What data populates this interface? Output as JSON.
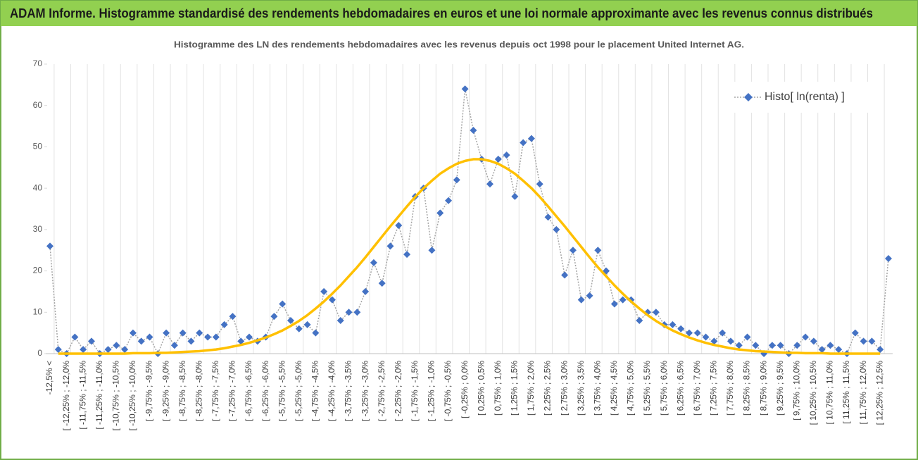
{
  "header": {
    "title": "ADAM Informe. Histogramme standardisé des rendements hebdomadaires en euros et une loi normale approximante avec les revenus connus distribués"
  },
  "chart_data": {
    "type": "line",
    "title": "Histogramme  des LN des rendements hebdomadaires avec les revenus depuis oct 1998 pour le placement United Internet AG.",
    "categories": [
      "-12,5% <",
      null,
      "[ -12,25% ; -12,0%",
      null,
      "[ -11,75% ; -11,5%",
      null,
      "[ -11,25% ; -11,0%",
      null,
      "[ -10,75% ; -10,5%",
      null,
      "[ -10,25% ; -10,0%",
      null,
      "[ -9,75% ; -9,5%",
      null,
      "[ -9,25% ; -9,0%",
      null,
      "[ -8,75% ; -8,5%",
      null,
      "[ -8,25% ; -8,0%",
      null,
      "[ -7,75% ; -7,5%",
      null,
      "[ -7,25% ; -7,0%",
      null,
      "[ -6,75% ; -6,5%",
      null,
      "[ -6,25% ; -6,0%",
      null,
      "[ -5,75% ; -5,5%",
      null,
      "[ -5,25% ; -5,0%",
      null,
      "[ -4,75% ; -4,5%",
      null,
      "[ -4,25% ; -4,0%",
      null,
      "[ -3,75% ; -3,5%",
      null,
      "[ -3,25% ; -3,0%",
      null,
      "[ -2,75% ; -2,5%",
      null,
      "[ -2,25% ; -2,0%",
      null,
      "[ -1,75% ; -1,5%",
      null,
      "[ -1,25% ; -1,0%",
      null,
      "[ -0,75% ; -0,5%",
      null,
      "[ -0,25% ; 0,0%",
      null,
      "[ 0,25% ; 0,5%",
      null,
      "[ 0,75% ; 1,0%",
      null,
      "[ 1,25% ; 1,5%",
      null,
      "[ 1,75% ; 2,0%",
      null,
      "[ 2,25% ; 2,5%",
      null,
      "[ 2,75% ; 3,0%",
      null,
      "[ 3,25% ; 3,5%",
      null,
      "[ 3,75% ; 4,0%",
      null,
      "[ 4,25% ; 4,5%",
      null,
      "[ 4,75% ; 5,0%",
      null,
      "[ 5,25% ; 5,5%",
      null,
      "[ 5,75% ; 6,0%",
      null,
      "[ 6,25% ; 6,5%",
      null,
      "[ 6,75% ; 7,0%",
      null,
      "[ 7,25% ; 7,5%",
      null,
      "[ 7,75% ; 8,0%",
      null,
      "[ 8,25% ; 8,5%",
      null,
      "[ 8,75% ; 9,0%",
      null,
      "[ 9,25% ; 9,5%",
      null,
      "[ 9,75% ; 10,0%",
      null,
      "[ 10,25% ; 10,5%",
      null,
      "[ 10,75% ; 11,0%",
      null,
      "[ 11,25% ; 11,5%",
      null,
      "[ 11,75% ; 12,0%",
      null,
      "[ 12,25% ; 12,5%",
      null
    ],
    "series": [
      {
        "name": "Histo[ ln(renta) ]",
        "color": "#4472c4",
        "line_color": "#a5a5a5",
        "marker": "diamond",
        "values": [
          26,
          1,
          0,
          4,
          1,
          3,
          0,
          1,
          2,
          1,
          5,
          3,
          4,
          0,
          5,
          2,
          5,
          3,
          5,
          4,
          4,
          7,
          9,
          3,
          4,
          3,
          4,
          9,
          12,
          8,
          6,
          7,
          5,
          15,
          13,
          8,
          10,
          10,
          15,
          22,
          17,
          26,
          31,
          24,
          38,
          40,
          25,
          34,
          37,
          42,
          64,
          54,
          47,
          41,
          47,
          48,
          38,
          51,
          52,
          41,
          33,
          30,
          19,
          25,
          13,
          14,
          25,
          20,
          12,
          13,
          13,
          8,
          10,
          10,
          7,
          7,
          6,
          5,
          5,
          4,
          3,
          5,
          3,
          2,
          4,
          2,
          0,
          2,
          2,
          0,
          2,
          4,
          3,
          1,
          2,
          1,
          0,
          5,
          3,
          3,
          1,
          23
        ]
      },
      {
        "color": "#ffc000",
        "values": [
          null,
          0,
          0,
          0,
          0,
          0,
          0,
          0,
          0,
          0,
          0.1,
          0.1,
          0.1,
          0.2,
          0.2,
          0.3,
          0.4,
          0.5,
          0.6,
          0.8,
          1,
          1.3,
          1.7,
          2.1,
          2.6,
          3.2,
          3.9,
          4.7,
          5.6,
          6.7,
          7.9,
          9.3,
          10.9,
          12.6,
          14.5,
          16.5,
          18.7,
          20.9,
          23.3,
          25.8,
          28.3,
          30.8,
          33.2,
          35.6,
          37.9,
          40,
          41.8,
          43.5,
          44.8,
          45.9,
          46.6,
          47,
          47,
          46.6,
          45.9,
          44.8,
          43.5,
          41.8,
          40,
          37.9,
          35.6,
          33.2,
          30.8,
          28.3,
          25.8,
          23.3,
          20.9,
          18.7,
          16.5,
          14.5,
          12.6,
          10.9,
          9.3,
          7.9,
          6.7,
          5.6,
          4.7,
          3.9,
          3.2,
          2.6,
          2.1,
          1.7,
          1.3,
          1,
          0.8,
          0.6,
          0.5,
          0.4,
          0.3,
          0.2,
          0.2,
          0.1,
          0.1,
          0.1,
          0,
          0,
          0,
          0,
          0,
          0,
          0,
          null
        ]
      }
    ],
    "ylim": [
      0,
      70
    ],
    "yticks": [
      0,
      10,
      20,
      30,
      40,
      50,
      60,
      70
    ],
    "grid": true,
    "legend": "upper right"
  }
}
